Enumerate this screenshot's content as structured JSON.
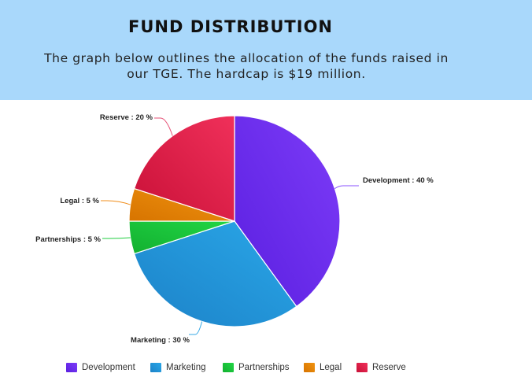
{
  "header": {
    "title": "FUND DISTRIBUTION",
    "subtitle": "The graph below outlines the allocation of the funds raised in our TGE. The hardcap is $19 million."
  },
  "chart_data": {
    "type": "pie",
    "title": "",
    "legend_position": "bottom",
    "slices": [
      {
        "label": "Development",
        "value": 40,
        "display": "Development : 40 %",
        "color": "#5a1fe0",
        "color2": "#7d3cf8",
        "line": "#8a52ff"
      },
      {
        "label": "Marketing",
        "value": 30,
        "display": "Marketing : 30 %",
        "color": "#1c82c8",
        "color2": "#2aa7e8",
        "line": "#37a9e6"
      },
      {
        "label": "Partnerships",
        "value": 5,
        "display": "Partnerships : 5 %",
        "color": "#13b030",
        "color2": "#21d545",
        "line": "#1fce3f"
      },
      {
        "label": "Legal",
        "value": 5,
        "display": "Legal : 5 %",
        "color": "#d77400",
        "color2": "#f09310",
        "line": "#f08c18"
      },
      {
        "label": "Reserve",
        "value": 20,
        "display": "Reserve : 20 %",
        "color": "#c81037",
        "color2": "#f0305a",
        "line": "#e64f74"
      }
    ]
  }
}
